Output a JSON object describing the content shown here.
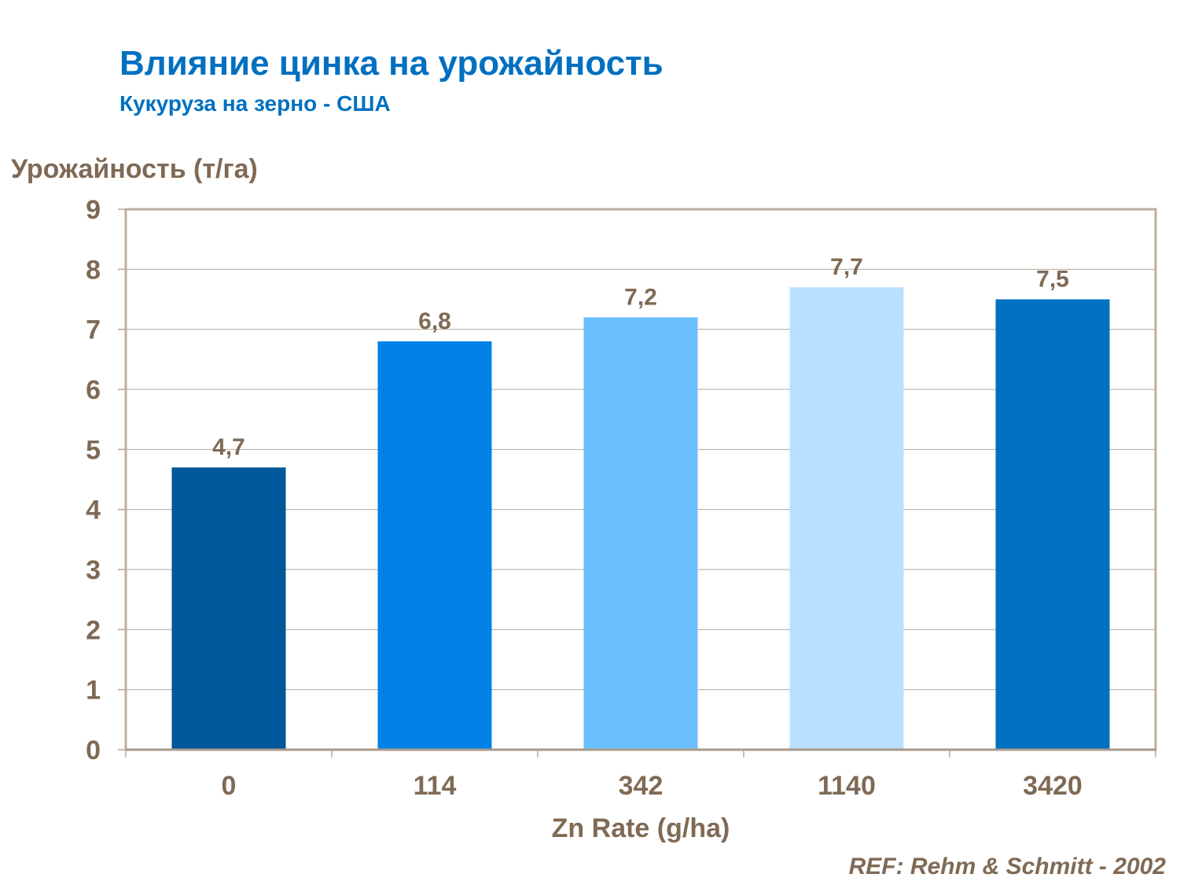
{
  "chart_data": {
    "type": "bar",
    "title": "Влияние цинка на урожайность",
    "subtitle": "Кукуруза на зерно - США",
    "ylabel": "Урожайность (т/га)",
    "xlabel": "Zn Rate (g/ha)",
    "categories": [
      "0",
      "114",
      "342",
      "1140",
      "3420"
    ],
    "values": [
      4.7,
      6.8,
      7.2,
      7.7,
      7.5
    ],
    "data_labels": [
      "4,7",
      "6,8",
      "7,2",
      "7,7",
      "7,5"
    ],
    "bar_colors": [
      "#00589B",
      "#0082E6",
      "#6BBFFF",
      "#B9E0FF",
      "#0070C0"
    ],
    "ylim": [
      0,
      9
    ],
    "yticks": [
      "0",
      "1",
      "2",
      "3",
      "4",
      "5",
      "6",
      "7",
      "8",
      "9"
    ],
    "grid": true,
    "legend": "none"
  },
  "reference": "REF: Rehm & Schmitt - 2002"
}
